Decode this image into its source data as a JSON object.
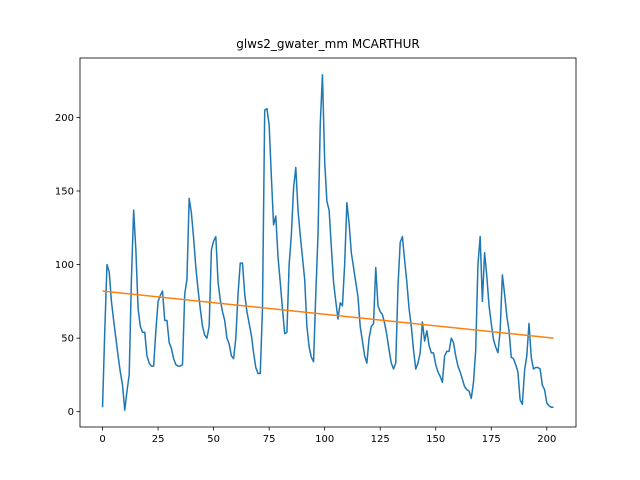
{
  "chart_data": {
    "type": "line",
    "title": "glws2_gwater_mm MCARTHUR",
    "xlim": [
      -10.15,
      213.15
    ],
    "xticks": [
      0,
      25,
      50,
      75,
      100,
      125,
      150,
      175,
      200
    ],
    "ylim": [
      -10.4,
      240.4
    ],
    "yticks": [
      0,
      50,
      100,
      150,
      200
    ],
    "series": [
      {
        "color": "#1f77b4",
        "x": [
          0,
          1,
          2,
          3,
          4,
          5,
          6,
          7,
          8,
          9,
          10,
          11,
          12,
          13,
          14,
          15,
          16,
          17,
          18,
          19,
          20,
          21,
          22,
          23,
          24,
          25,
          26,
          27,
          28,
          29,
          30,
          31,
          32,
          33,
          34,
          35,
          36,
          37,
          38,
          39,
          40,
          41,
          42,
          43,
          44,
          45,
          46,
          47,
          48,
          49,
          50,
          51,
          52,
          53,
          54,
          55,
          56,
          57,
          58,
          59,
          60,
          61,
          62,
          63,
          64,
          65,
          66,
          67,
          68,
          69,
          70,
          71,
          72,
          73,
          74,
          75,
          76,
          77,
          78,
          79,
          80,
          81,
          82,
          83,
          84,
          85,
          86,
          87,
          88,
          89,
          90,
          91,
          92,
          93,
          94,
          95,
          96,
          97,
          98,
          99,
          100,
          101,
          102,
          103,
          104,
          105,
          106,
          107,
          108,
          109,
          110,
          111,
          112,
          113,
          114,
          115,
          116,
          117,
          118,
          119,
          120,
          121,
          122,
          123,
          124,
          125,
          126,
          127,
          128,
          129,
          130,
          131,
          132,
          133,
          134,
          135,
          136,
          137,
          138,
          139,
          140,
          141,
          142,
          143,
          144,
          145,
          146,
          147,
          148,
          149,
          150,
          151,
          152,
          153,
          154,
          155,
          156,
          157,
          158,
          159,
          160,
          161,
          162,
          163,
          164,
          165,
          166,
          167,
          168,
          169,
          170,
          171,
          172,
          173,
          174,
          175,
          176,
          177,
          178,
          179,
          180,
          181,
          182,
          183,
          184,
          185,
          186,
          187,
          188,
          189,
          190,
          191,
          192,
          193,
          194,
          195,
          196,
          197,
          198,
          199,
          200,
          201,
          202,
          203
        ],
        "values": [
          3,
          55,
          100,
          95,
          75,
          62,
          50,
          38,
          27,
          18,
          1,
          14,
          25,
          90,
          137,
          110,
          70,
          58,
          54,
          54,
          38,
          33,
          31,
          31,
          55,
          75,
          79,
          82,
          62,
          62,
          47,
          43,
          36,
          32,
          31,
          31,
          32,
          80,
          90,
          145,
          135,
          118,
          98,
          83,
          70,
          58,
          52,
          50,
          58,
          110,
          116,
          119,
          88,
          76,
          68,
          62,
          50,
          46,
          38,
          36,
          50,
          80,
          101,
          101,
          80,
          68,
          60,
          52,
          40,
          30,
          26,
          26,
          70,
          205,
          206,
          195,
          160,
          127,
          133,
          105,
          88,
          70,
          53,
          54,
          100,
          120,
          152,
          166,
          137,
          120,
          105,
          90,
          58,
          44,
          37,
          34,
          80,
          120,
          195,
          229,
          170,
          143,
          137,
          112,
          88,
          75,
          63,
          74,
          72,
          100,
          142,
          128,
          108,
          98,
          88,
          78,
          58,
          48,
          38,
          33,
          50,
          58,
          60,
          98,
          72,
          68,
          66,
          60,
          52,
          42,
          33,
          29,
          33,
          85,
          115,
          119,
          103,
          88,
          70,
          58,
          42,
          29,
          33,
          40,
          61,
          48,
          55,
          45,
          40,
          40,
          32,
          27,
          24,
          20,
          38,
          41,
          41,
          50,
          47,
          38,
          31,
          27,
          22,
          17,
          15,
          14,
          9,
          20,
          42,
          100,
          119,
          75,
          108,
          92,
          72,
          60,
          49,
          44,
          40,
          55,
          93,
          80,
          65,
          55,
          37,
          36,
          32,
          27,
          8,
          5,
          28,
          38,
          60,
          37,
          29,
          30,
          30,
          29,
          18,
          15,
          6,
          4,
          3,
          3
        ]
      },
      {
        "color": "#ff7f0e",
        "x": [
          0,
          203
        ],
        "values": [
          82,
          50
        ]
      }
    ]
  }
}
